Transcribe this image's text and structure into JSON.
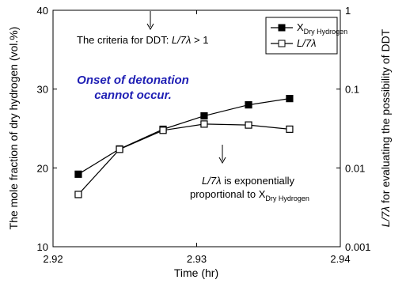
{
  "chart_data": {
    "type": "line",
    "x_label": "Time (hr)",
    "y_label": "The mole fraction of dry hydrogen (vol.%)",
    "y2_label": [
      "L/7λ",
      " for evaluating the possibility of DDT"
    ],
    "x": [
      2.92176,
      2.92463,
      2.92766,
      2.93052,
      2.93361,
      2.93647
    ],
    "xlim": [
      2.92,
      2.94
    ],
    "xticks": [
      2.92,
      2.93,
      2.94
    ],
    "ylim": [
      10,
      40
    ],
    "yticks": [
      10,
      20,
      30,
      40
    ],
    "y2lim": [
      0.001,
      1
    ],
    "y2ticks": [
      0.001,
      0.01,
      0.1,
      1
    ],
    "y2_log": true,
    "series": [
      {
        "name": "X",
        "subscript": "Dry Hydrogen",
        "color": "#000000",
        "marker": "filled-square",
        "values": [
          19.2,
          22.4,
          24.9,
          26.6,
          28.0,
          28.8
        ]
      },
      {
        "name": "L/7λ",
        "color": "#000000",
        "marker": "open-square",
        "axis": "y2",
        "values": [
          0.0046,
          0.0172,
          0.03,
          0.036,
          0.035,
          0.031
        ]
      }
    ],
    "annotations": {
      "criteria": [
        "The criteria for DDT: ",
        "L/7λ",
        " > 1"
      ],
      "onset": [
        "Onset of detonation",
        "cannot occur."
      ],
      "relation": [
        "L/7λ",
        " is exponentially",
        "proportional to X",
        "Dry Hydrogen"
      ]
    },
    "legend_position": "upper right"
  }
}
